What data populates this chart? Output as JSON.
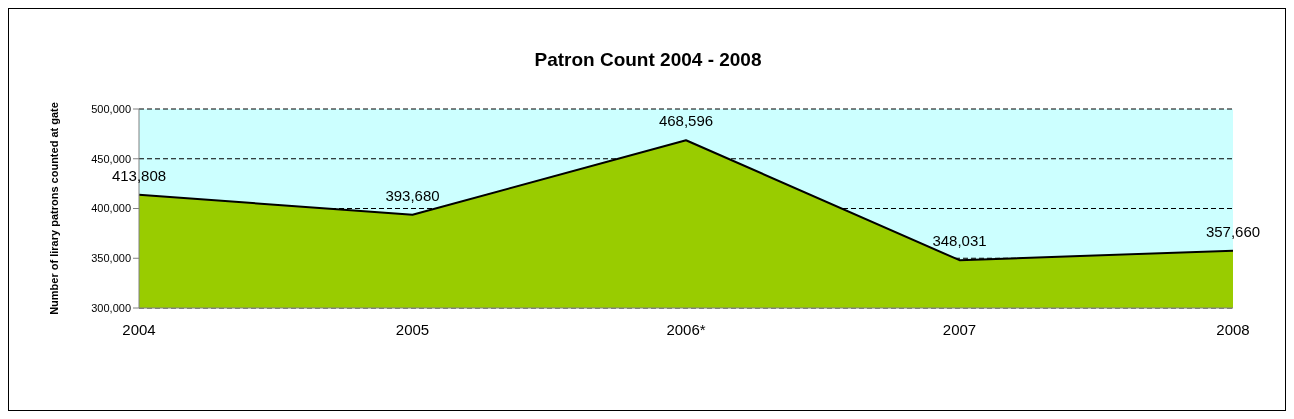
{
  "chart_data": {
    "type": "area",
    "title": "Patron Count 2004 - 2008",
    "ylabel": "Number of lirary patrons counted at gate",
    "categories": [
      "2004",
      "2005",
      "2006*",
      "2007",
      "2008"
    ],
    "series": [
      {
        "color": "#99cc00",
        "values": [
          413808,
          393680,
          468596,
          348031,
          357660
        ],
        "value_labels": [
          "413,808",
          "393,680",
          "468,596",
          "348,031",
          "357,660"
        ]
      }
    ],
    "ylim": [
      300000,
      500000
    ],
    "yticks": [
      {
        "value": 300000,
        "label": "300,000"
      },
      {
        "value": 350000,
        "label": "350,000"
      },
      {
        "value": 400000,
        "label": "400,000"
      },
      {
        "value": 450000,
        "label": "450,000"
      },
      {
        "value": 500000,
        "label": "500,000"
      }
    ],
    "bands": [
      {
        "axis": "y",
        "from": 300000,
        "to": 500000,
        "color": "#ccffff"
      }
    ],
    "grid": "y",
    "line_style": "solid"
  }
}
